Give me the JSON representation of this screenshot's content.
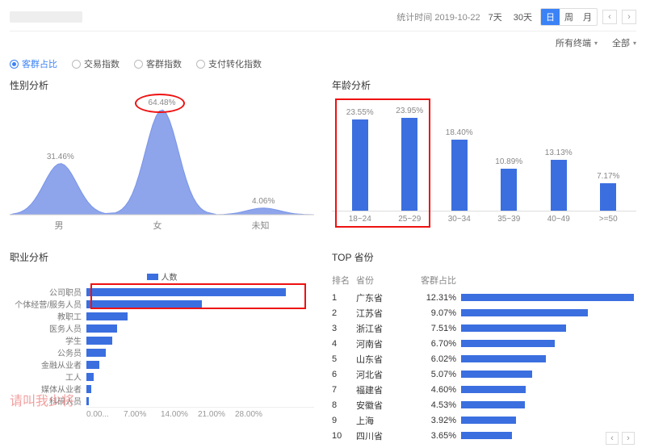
{
  "colors": {
    "primary": "#3b6fe0",
    "accent": "#3b82f6",
    "annotation": "#e11",
    "axis": "#888",
    "grid": "#eee"
  },
  "header": {
    "stat_time_label": "统计时间",
    "stat_time_value": "2019-10-22",
    "range_options": [
      "7天",
      "30天"
    ],
    "granularity": [
      "日",
      "周",
      "月"
    ],
    "granularity_active_index": 0,
    "terminal_dd": "所有终端",
    "scope_dd": "全部"
  },
  "metric_radios": {
    "options": [
      "客群占比",
      "交易指数",
      "客群指数",
      "支付转化指数"
    ],
    "selected_index": 0
  },
  "gender": {
    "title": "性别分析",
    "categories": [
      "男",
      "女",
      "未知"
    ],
    "values_pct": [
      31.46,
      64.48,
      4.06
    ],
    "value_labels": [
      "31.46%",
      "64.48%",
      "4.06%"
    ],
    "peak_circle_index": 1,
    "area_fill": "#7a95e8",
    "area_opacity": 0.85
  },
  "age": {
    "title": "年龄分析",
    "categories": [
      "18~24",
      "25~29",
      "30~34",
      "35~39",
      "40~49",
      ">=50"
    ],
    "values_pct": [
      23.55,
      23.95,
      18.4,
      10.89,
      13.13,
      7.17
    ],
    "value_labels": [
      "23.55%",
      "23.95%",
      "18.40%",
      "10.89%",
      "13.13%",
      "7.17%"
    ],
    "y_max": 25,
    "bar_color": "#3b6fe0",
    "highlight_rect_cols": [
      0,
      1
    ]
  },
  "occupation": {
    "title": "职业分析",
    "legend_label": "人数",
    "x_ticks": [
      "0.00...",
      "7.00%",
      "14.00%",
      "21.00%",
      "28.00%"
    ],
    "x_max": 28,
    "items": [
      {
        "label": "公司职员",
        "pct": 24.5
      },
      {
        "label": "个体经营/服务人员",
        "pct": 14.2
      },
      {
        "label": "教职工",
        "pct": 5.1
      },
      {
        "label": "医务人员",
        "pct": 3.8
      },
      {
        "label": "学生",
        "pct": 3.2
      },
      {
        "label": "公务员",
        "pct": 2.4
      },
      {
        "label": "金融从业者",
        "pct": 1.6
      },
      {
        "label": "工人",
        "pct": 0.9
      },
      {
        "label": "媒体从业者",
        "pct": 0.6
      },
      {
        "label": "科研人员",
        "pct": 0.3
      }
    ],
    "highlight_rect_rows": [
      0,
      1
    ],
    "watermark_text": "请叫我少将"
  },
  "provinces": {
    "title": "TOP 省份",
    "columns": [
      "排名",
      "省份",
      "客群占比"
    ],
    "bar_max_pct": 12.5,
    "rows": [
      {
        "rank": 1,
        "name": "广东省",
        "pct": 12.31,
        "pct_label": "12.31%"
      },
      {
        "rank": 2,
        "name": "江苏省",
        "pct": 9.07,
        "pct_label": "9.07%"
      },
      {
        "rank": 3,
        "name": "浙江省",
        "pct": 7.51,
        "pct_label": "7.51%"
      },
      {
        "rank": 4,
        "name": "河南省",
        "pct": 6.7,
        "pct_label": "6.70%"
      },
      {
        "rank": 5,
        "name": "山东省",
        "pct": 6.02,
        "pct_label": "6.02%"
      },
      {
        "rank": 6,
        "name": "河北省",
        "pct": 5.07,
        "pct_label": "5.07%"
      },
      {
        "rank": 7,
        "name": "福建省",
        "pct": 4.6,
        "pct_label": "4.60%"
      },
      {
        "rank": 8,
        "name": "安徽省",
        "pct": 4.53,
        "pct_label": "4.53%"
      },
      {
        "rank": 9,
        "name": "上海",
        "pct": 3.92,
        "pct_label": "3.92%"
      },
      {
        "rank": 10,
        "name": "四川省",
        "pct": 3.65,
        "pct_label": "3.65%"
      }
    ]
  }
}
